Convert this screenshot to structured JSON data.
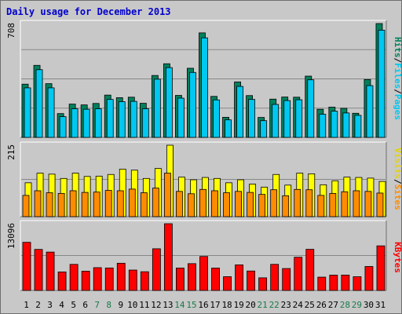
{
  "title": "Daily usage for December 2013",
  "colors": {
    "background": "#c8c8c8",
    "panel": "#c8c8c8",
    "grid": "#888888",
    "title": "#0000cc",
    "pages": "#00805c",
    "files": "#00c8f0",
    "hits": "#00805c",
    "visits": "#ffff00",
    "sites": "#ff8c00",
    "kbytes": "#ff0000",
    "weekday": "#00805c",
    "weekend": "#1a7a4a"
  },
  "labels": {
    "pages": "Pages",
    "files": "Files",
    "hits": "Hits",
    "visits": "Visits",
    "sites": "Sites",
    "kbytes": "KBytes",
    "sep": "/"
  },
  "chart_data": [
    {
      "type": "bar",
      "name": "hits-files",
      "categories": [
        "1",
        "2",
        "3",
        "4",
        "5",
        "6",
        "7",
        "8",
        "9",
        "10",
        "11",
        "12",
        "13",
        "14",
        "15",
        "16",
        "17",
        "18",
        "19",
        "20",
        "21",
        "22",
        "23",
        "24",
        "25",
        "26",
        "27",
        "28",
        "29",
        "30",
        "31"
      ],
      "ymax_label": "708",
      "ylim": [
        0,
        708
      ],
      "series": [
        {
          "name": "Hits",
          "values": [
            331,
            448,
            334,
            148,
            207,
            202,
            211,
            263,
            247,
            250,
            212,
            385,
            458,
            261,
            430,
            650,
            255,
            125,
            345,
            260,
            124,
            238,
            251,
            250,
            381,
            175,
            188,
            181,
            150,
            360,
            708
          ]
        },
        {
          "name": "Files",
          "values": [
            308,
            421,
            308,
            129,
            178,
            175,
            178,
            236,
            222,
            224,
            178,
            362,
            434,
            244,
            404,
            619,
            233,
            109,
            317,
            236,
            104,
            205,
            229,
            234,
            358,
            144,
            163,
            152,
            137,
            322,
            667
          ]
        },
        {
          "name": "Pages",
          "values": [
            0,
            0,
            0,
            0,
            0,
            0,
            0,
            0,
            0,
            0,
            0,
            0,
            0,
            0,
            0,
            0,
            0,
            0,
            0,
            0,
            0,
            0,
            0,
            0,
            0,
            0,
            0,
            0,
            0,
            0,
            0
          ]
        }
      ]
    },
    {
      "type": "bar",
      "name": "visits-sites",
      "ymax_label": "215",
      "ylim": [
        0,
        215
      ],
      "series": [
        {
          "name": "Visits",
          "values": [
            102,
            131,
            128,
            115,
            131,
            121,
            122,
            127,
            143,
            140,
            115,
            145,
            215,
            119,
            111,
            118,
            115,
            102,
            111,
            98,
            89,
            127,
            95,
            131,
            129,
            96,
            108,
            119,
            118,
            116,
            106
          ]
        },
        {
          "name": "Sites",
          "values": [
            64,
            78,
            72,
            70,
            78,
            73,
            74,
            79,
            78,
            83,
            72,
            86,
            131,
            76,
            69,
            82,
            78,
            72,
            76,
            73,
            67,
            81,
            63,
            82,
            81,
            64,
            70,
            75,
            78,
            76,
            71
          ]
        }
      ]
    },
    {
      "type": "bar",
      "name": "kbytes",
      "ymax_label": "13096",
      "ylim": [
        0,
        13096
      ],
      "series": [
        {
          "name": "KBytes",
          "values": [
            9450,
            8057,
            7532,
            3634,
            5117,
            3778,
            4475,
            4414,
            5339,
            4002,
            3674,
            8182,
            13096,
            4400,
            5262,
            6668,
            4398,
            2705,
            5025,
            3816,
            2480,
            5124,
            4303,
            6519,
            8076,
            2614,
            3007,
            3020,
            2695,
            4704,
            8753
          ]
        }
      ]
    }
  ],
  "day_label_colors": [
    "weekday",
    "weekday",
    "weekday",
    "weekday",
    "weekday",
    "weekday",
    "weekend",
    "weekend",
    "weekday",
    "weekday",
    "weekday",
    "weekday",
    "weekday",
    "weekend",
    "weekend",
    "weekday",
    "weekday",
    "weekday",
    "weekday",
    "weekday",
    "weekend",
    "weekend",
    "weekday",
    "weekday",
    "weekday",
    "weekday",
    "weekday",
    "weekend",
    "weekend",
    "weekday",
    "weekday"
  ]
}
